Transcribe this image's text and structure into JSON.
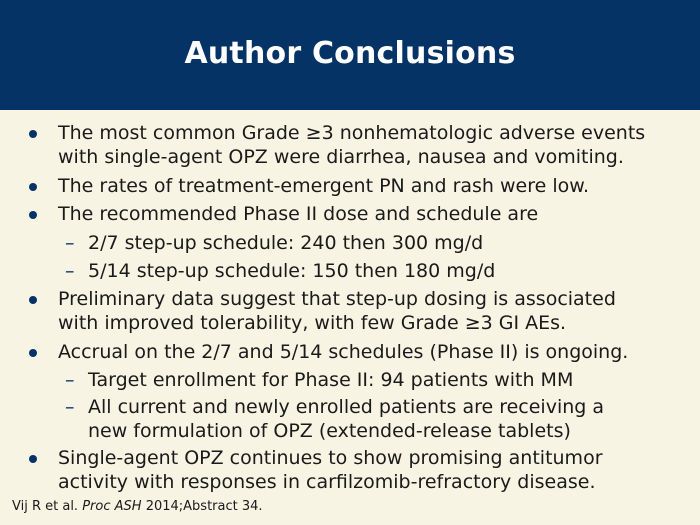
{
  "slide": {
    "title": "Author Conclusions",
    "colors": {
      "header_bg": "#063366",
      "body_bg": "#f7f4e3",
      "bullet": "#063366"
    }
  },
  "bullets": [
    {
      "level": 1,
      "lines": [
        "The most common Grade ≥3 nonhematologic adverse events",
        "with single-agent OPZ were diarrhea, nausea and vomiting."
      ]
    },
    {
      "level": 1,
      "lines": [
        "The rates of treatment-emergent PN and rash were low."
      ]
    },
    {
      "level": 1,
      "lines": [
        "The recommended Phase II dose and schedule are"
      ]
    },
    {
      "level": 2,
      "lines": [
        "2/7 step-up schedule: 240 then 300 mg/d"
      ]
    },
    {
      "level": 2,
      "lines": [
        "5/14 step-up schedule: 150 then 180 mg/d"
      ]
    },
    {
      "level": 1,
      "lines": [
        "Preliminary data suggest that step-up dosing is associated",
        "with improved tolerability, with few Grade ≥3 GI AEs."
      ]
    },
    {
      "level": 1,
      "lines": [
        "Accrual on the 2/7 and 5/14 schedules (Phase II) is ongoing."
      ]
    },
    {
      "level": 2,
      "lines": [
        "Target enrollment for Phase II: 94 patients with MM"
      ]
    },
    {
      "level": 2,
      "lines": [
        "All current and newly enrolled patients are receiving a",
        "new formulation of OPZ (extended-release tablets)"
      ]
    },
    {
      "level": 1,
      "lines": [
        "Single-agent OPZ continues to show promising antitumor",
        "activity with responses in carfilzomib-refractory disease."
      ]
    }
  ],
  "citation": {
    "authors": "Vij R et al.",
    "journal": "Proc ASH",
    "details": "2014;Abstract 34."
  }
}
